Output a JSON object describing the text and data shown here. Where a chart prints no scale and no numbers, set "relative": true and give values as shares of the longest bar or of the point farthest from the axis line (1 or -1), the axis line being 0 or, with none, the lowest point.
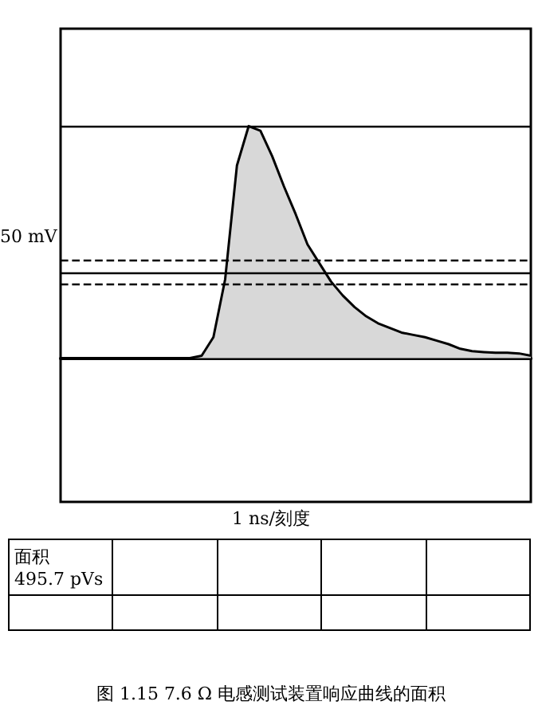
{
  "chart_data": {
    "type": "area",
    "relative": true,
    "categories": [
      null,
      null,
      null,
      null,
      null,
      null,
      null,
      null,
      null,
      null,
      null,
      null,
      null,
      null,
      null,
      null,
      null,
      null,
      null,
      null,
      null,
      null,
      null,
      null,
      null,
      null,
      null,
      null,
      null,
      null,
      null,
      null,
      null,
      null,
      null,
      null,
      null,
      null,
      null,
      null,
      null
    ],
    "series": [
      {
        "color": "#000000",
        "values": [
          0,
          0,
          0,
          0,
          0,
          0,
          0,
          0,
          0,
          0,
          0,
          0,
          0.01,
          0.09,
          0.34,
          0.83,
          1,
          0.98,
          0.87,
          0.74,
          0.62,
          0.49,
          0.41,
          0.33,
          0.27,
          0.22,
          0.18,
          0.15,
          0.13,
          0.11,
          0.1,
          0.09,
          0.075,
          0.06,
          0.04,
          0.03,
          0.026,
          0.023,
          0.023,
          0.02,
          0.01
        ]
      }
    ],
    "ref_lines": [
      {
        "axis": "y",
        "value": 1,
        "line_style": "solid"
      },
      {
        "axis": "y",
        "value": 0.42,
        "line_style": "dashed"
      },
      {
        "axis": "y",
        "value": 0.37,
        "line_style": "solid"
      },
      {
        "axis": "y",
        "value": 0.32,
        "line_style": "dashed"
      }
    ],
    "annotations": [
      "50 mV",
      "1 ns/刻度",
      "面积\n495.7 pVs",
      "图 1.15    7.6 Ω 电感测试装置响应曲线的面积"
    ],
    "grid": false,
    "marker": "none",
    "line_style": "solid"
  }
}
